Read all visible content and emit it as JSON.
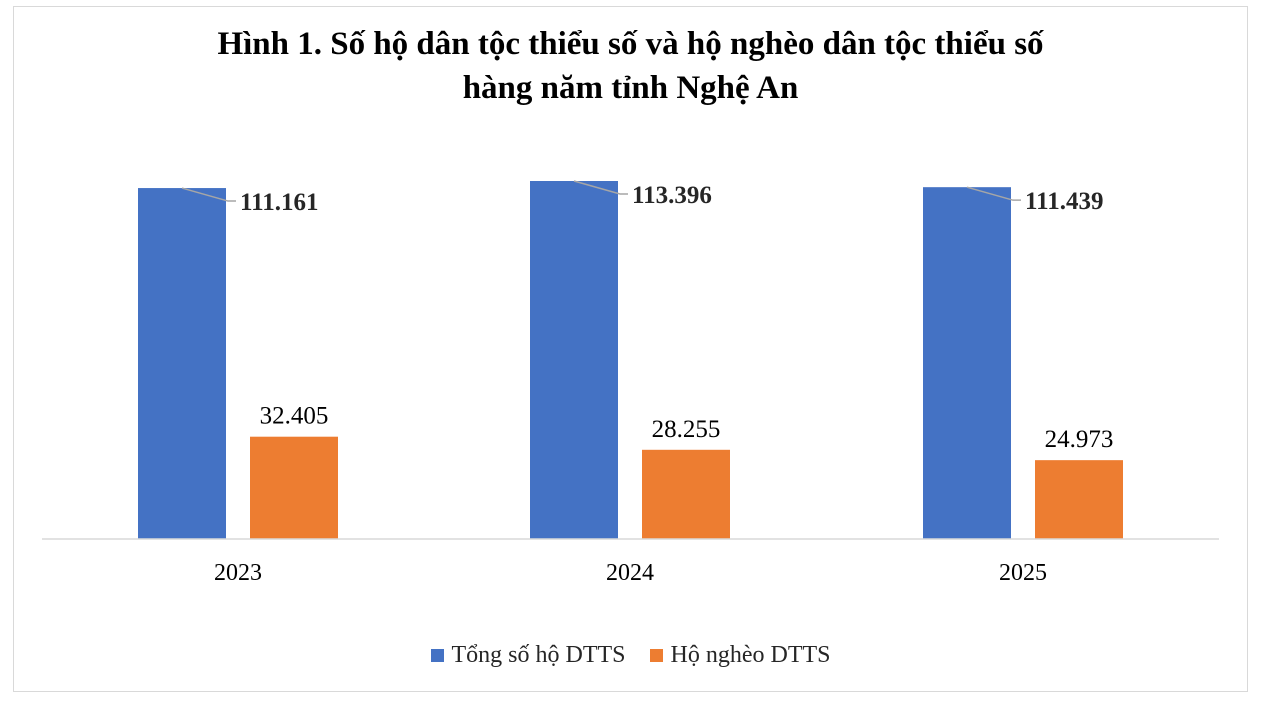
{
  "chart_data": {
    "type": "bar",
    "title_lines": [
      "Hình 1. Số hộ dân tộc thiểu số và hộ nghèo dân tộc thiểu số",
      "hàng năm tỉnh Nghệ An"
    ],
    "categories": [
      "2023",
      "2024",
      "2025"
    ],
    "series": [
      {
        "name": "Tổng số hộ DTTS",
        "color": "#4472c4",
        "values": [
          111161,
          113396,
          111439
        ],
        "labels": [
          "111.161",
          "113.396",
          "111.439"
        ]
      },
      {
        "name": "Hộ nghèo DTTS",
        "color": "#ed7d31",
        "values": [
          32405,
          28255,
          24973
        ],
        "labels": [
          "32.405",
          "28.255",
          "24.973"
        ]
      }
    ],
    "ylim": [
      0,
      113396
    ],
    "grid": false,
    "legend_position": "bottom"
  }
}
